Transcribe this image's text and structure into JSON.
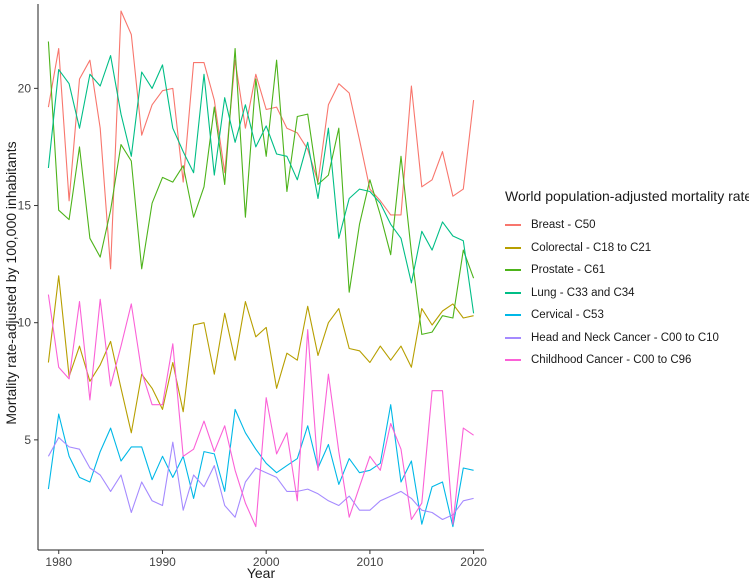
{
  "chart_data": {
    "type": "line",
    "title": "",
    "xlabel": "Year",
    "ylabel": "Mortality rate-adjusted by 100,000 inhabitants",
    "xlim": [
      1978,
      2021
    ],
    "ylim": [
      0.3,
      23.6
    ],
    "xticks": [
      1980,
      1990,
      2000,
      2010,
      2020
    ],
    "yticks": [
      5,
      10,
      15,
      20
    ],
    "grid": false,
    "legend": {
      "title": "World population-adjusted mortality rate",
      "position": "right"
    },
    "series": [
      {
        "name": "Breast - C50",
        "color": "#F8766D",
        "x": [
          1979,
          1980,
          1981,
          1982,
          1983,
          1984,
          1985,
          1986,
          1987,
          1988,
          1989,
          1990,
          1991,
          1992,
          1993,
          1994,
          1995,
          1996,
          1997,
          1998,
          1999,
          2000,
          2001,
          2002,
          2003,
          2004,
          2005,
          2006,
          2007,
          2008,
          2009,
          2010,
          2011,
          2012,
          2013,
          2014,
          2015,
          2016,
          2017,
          2018,
          2019,
          2020
        ],
        "values": [
          19.2,
          21.7,
          15.2,
          20.4,
          21.2,
          18.3,
          12.3,
          23.3,
          22.3,
          18.0,
          19.3,
          19.9,
          20.0,
          16.0,
          21.1,
          21.1,
          19.5,
          16.4,
          21.2,
          18.3,
          20.6,
          19.1,
          19.2,
          18.3,
          18.1,
          17.4,
          16.0,
          19.3,
          20.2,
          19.8,
          17.8,
          15.7,
          15.2,
          14.6,
          14.6,
          20.1,
          15.8,
          16.1,
          17.3,
          15.4,
          15.7,
          19.5
        ]
      },
      {
        "name": "Colorectal - C18 to C21",
        "color": "#B79F00",
        "x": [
          1979,
          1980,
          1981,
          1982,
          1983,
          1984,
          1985,
          1986,
          1987,
          1988,
          1989,
          1990,
          1991,
          1992,
          1993,
          1994,
          1995,
          1996,
          1997,
          1998,
          1999,
          2000,
          2001,
          2002,
          2003,
          2004,
          2005,
          2006,
          2007,
          2008,
          2009,
          2010,
          2011,
          2012,
          2013,
          2014,
          2015,
          2016,
          2017,
          2018,
          2019,
          2020
        ],
        "values": [
          8.3,
          12.0,
          7.7,
          9.0,
          7.5,
          8.2,
          9.2,
          7.2,
          5.3,
          7.8,
          7.2,
          6.3,
          8.3,
          6.2,
          9.9,
          10.0,
          7.8,
          10.4,
          8.4,
          10.9,
          9.4,
          9.8,
          7.2,
          8.7,
          8.4,
          10.7,
          8.6,
          10.0,
          10.6,
          8.9,
          8.8,
          8.3,
          9.0,
          8.4,
          9.0,
          8.1,
          10.6,
          9.9,
          10.5,
          10.8,
          10.2,
          10.3
        ]
      },
      {
        "name": "Prostate - C61",
        "color": "#4DB31A",
        "x": [
          1979,
          1980,
          1981,
          1982,
          1983,
          1984,
          1985,
          1986,
          1987,
          1988,
          1989,
          1990,
          1991,
          1992,
          1993,
          1994,
          1995,
          1996,
          1997,
          1998,
          1999,
          2000,
          2001,
          2002,
          2003,
          2004,
          2005,
          2006,
          2007,
          2008,
          2009,
          2010,
          2011,
          2012,
          2013,
          2014,
          2015,
          2016,
          2017,
          2018,
          2019,
          2020
        ],
        "values": [
          22.0,
          14.8,
          14.4,
          17.5,
          13.6,
          12.8,
          14.8,
          17.6,
          16.9,
          12.3,
          15.1,
          16.2,
          16.0,
          16.7,
          14.5,
          15.8,
          19.2,
          15.9,
          21.7,
          14.5,
          20.4,
          17.1,
          21.2,
          15.6,
          18.8,
          18.9,
          15.9,
          16.3,
          18.3,
          11.3,
          14.2,
          16.1,
          14.6,
          12.9,
          17.1,
          13.0,
          9.5,
          9.6,
          10.3,
          10.2,
          13.1,
          11.9
        ]
      },
      {
        "name": "Lung - C33 and C34",
        "color": "#00BE86",
        "x": [
          1979,
          1980,
          1981,
          1982,
          1983,
          1984,
          1985,
          1986,
          1987,
          1988,
          1989,
          1990,
          1991,
          1992,
          1993,
          1994,
          1995,
          1996,
          1997,
          1998,
          1999,
          2000,
          2001,
          2002,
          2003,
          2004,
          2005,
          2006,
          2007,
          2008,
          2009,
          2010,
          2011,
          2012,
          2013,
          2014,
          2015,
          2016,
          2017,
          2018,
          2019,
          2020
        ],
        "values": [
          16.6,
          20.8,
          20.2,
          18.3,
          20.6,
          20.1,
          21.4,
          18.9,
          17.1,
          20.7,
          20.0,
          21.0,
          18.3,
          17.3,
          16.4,
          20.6,
          16.3,
          19.6,
          17.7,
          19.3,
          17.5,
          18.4,
          17.2,
          17.1,
          16.1,
          17.7,
          15.3,
          18.3,
          13.6,
          15.3,
          15.7,
          15.6,
          15.1,
          14.2,
          13.6,
          11.7,
          13.9,
          13.1,
          14.3,
          13.7,
          13.5,
          10.4
        ]
      },
      {
        "name": "Cervical - C53",
        "color": "#00B8E7",
        "x": [
          1979,
          1980,
          1981,
          1982,
          1983,
          1984,
          1985,
          1986,
          1987,
          1988,
          1989,
          1990,
          1991,
          1992,
          1993,
          1994,
          1995,
          1996,
          1997,
          1998,
          1999,
          2000,
          2001,
          2002,
          2003,
          2004,
          2005,
          2006,
          2007,
          2008,
          2009,
          2010,
          2011,
          2012,
          2013,
          2014,
          2015,
          2016,
          2017,
          2018,
          2019,
          2020
        ],
        "values": [
          2.9,
          6.1,
          4.3,
          3.4,
          3.2,
          4.5,
          5.5,
          4.1,
          4.7,
          4.7,
          3.3,
          4.3,
          3.4,
          4.3,
          2.5,
          4.5,
          4.4,
          2.8,
          6.3,
          5.3,
          4.6,
          4.0,
          3.6,
          3.9,
          4.2,
          5.6,
          3.8,
          4.8,
          3.1,
          4.2,
          3.6,
          3.7,
          4.0,
          6.5,
          3.2,
          4.1,
          1.4,
          3.0,
          3.2,
          1.3,
          3.8,
          3.7
        ]
      },
      {
        "name": "Head and Neck Cancer - C00 to C10",
        "color": "#A58AFF",
        "x": [
          1979,
          1980,
          1981,
          1982,
          1983,
          1984,
          1985,
          1986,
          1987,
          1988,
          1989,
          1990,
          1991,
          1992,
          1993,
          1994,
          1995,
          1996,
          1997,
          1998,
          1999,
          2000,
          2001,
          2002,
          2003,
          2004,
          2005,
          2006,
          2007,
          2008,
          2009,
          2010,
          2011,
          2012,
          2013,
          2014,
          2015,
          2016,
          2017,
          2018,
          2019,
          2020
        ],
        "values": [
          4.3,
          5.1,
          4.7,
          4.6,
          3.8,
          3.5,
          2.8,
          3.5,
          1.9,
          3.2,
          2.4,
          2.2,
          4.9,
          2.0,
          3.5,
          3.0,
          3.9,
          2.2,
          1.7,
          3.2,
          3.8,
          3.6,
          3.4,
          2.8,
          2.8,
          2.9,
          2.7,
          2.4,
          2.2,
          2.6,
          2.0,
          2.0,
          2.4,
          2.6,
          2.8,
          2.5,
          2.0,
          1.9,
          1.6,
          1.8,
          2.4,
          2.5
        ]
      },
      {
        "name": "Childhood Cancer - C00 to C96",
        "color": "#FB61D7",
        "x": [
          1979,
          1980,
          1981,
          1982,
          1983,
          1984,
          1985,
          1986,
          1987,
          1988,
          1989,
          1990,
          1991,
          1992,
          1993,
          1994,
          1995,
          1996,
          1997,
          1998,
          1999,
          2000,
          2001,
          2002,
          2003,
          2004,
          2005,
          2006,
          2007,
          2008,
          2009,
          2010,
          2011,
          2012,
          2013,
          2014,
          2015,
          2016,
          2017,
          2018,
          2019,
          2020
        ],
        "values": [
          11.2,
          8.1,
          7.6,
          10.9,
          6.7,
          11.0,
          7.3,
          9.0,
          10.8,
          7.9,
          6.5,
          6.5,
          9.1,
          4.3,
          4.6,
          5.8,
          4.5,
          5.6,
          3.7,
          2.3,
          1.3,
          6.8,
          4.4,
          5.3,
          2.4,
          9.7,
          3.7,
          7.8,
          4.5,
          1.7,
          3.0,
          4.3,
          3.7,
          5.7,
          4.6,
          1.6,
          2.3,
          7.1,
          7.1,
          1.4,
          5.5,
          5.2
        ]
      }
    ]
  }
}
